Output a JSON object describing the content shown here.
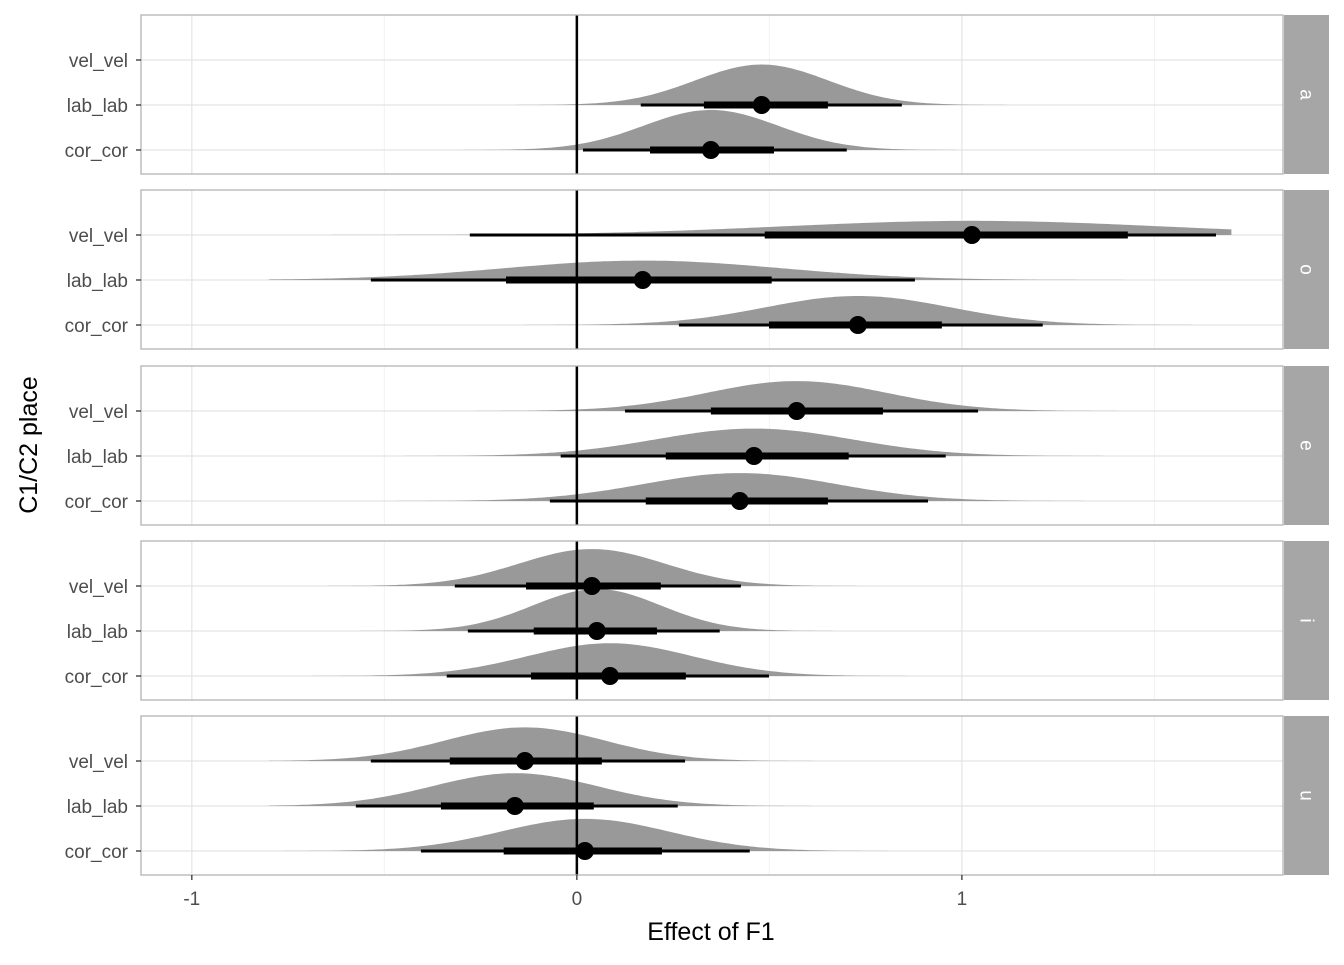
{
  "chart_data": {
    "type": "halfeye",
    "xlabel": "Effect of F1",
    "ylabel": "C1/C2 place",
    "xlim": [
      -1.132,
      1.834
    ],
    "x_ticks": [
      -1,
      0,
      1
    ],
    "x_tick_labels": [
      "-1",
      "0",
      "1"
    ],
    "x_minor_ticks": [
      -0.5,
      0.5,
      1.5
    ],
    "reference_line": 0,
    "categories": [
      "vel_vel",
      "lab_lab",
      "cor_cor"
    ],
    "grid": true,
    "colors": {
      "density": "#999999",
      "interval": "#000000",
      "strip": "#a6a6a6",
      "strip_text": "#ffffff"
    },
    "facets": [
      {
        "label": "a",
        "rows": [
          {
            "category": "lab_lab",
            "point": 0.48,
            "interval_66": [
              0.33,
              0.652
            ],
            "interval_95": [
              0.166,
              0.844
            ]
          },
          {
            "category": "cor_cor",
            "point": 0.348,
            "interval_66": [
              0.19,
              0.512
            ],
            "interval_95": [
              0.016,
              0.701
            ]
          }
        ]
      },
      {
        "label": "o",
        "rows": [
          {
            "category": "vel_vel",
            "point": 1.026,
            "interval_66": [
              0.488,
              1.431
            ],
            "interval_95": [
              -0.278,
              1.66
            ]
          },
          {
            "category": "lab_lab",
            "point": 0.171,
            "interval_66": [
              -0.184,
              0.506
            ],
            "interval_95": [
              -0.535,
              0.878
            ]
          },
          {
            "category": "cor_cor",
            "point": 0.73,
            "interval_66": [
              0.499,
              0.948
            ],
            "interval_95": [
              0.265,
              1.21
            ]
          }
        ]
      },
      {
        "label": "e",
        "rows": [
          {
            "category": "vel_vel",
            "point": 0.571,
            "interval_66": [
              0.348,
              0.795
            ],
            "interval_95": [
              0.125,
              1.042
            ]
          },
          {
            "category": "lab_lab",
            "point": 0.46,
            "interval_66": [
              0.231,
              0.706
            ],
            "interval_95": [
              -0.042,
              0.958
            ]
          },
          {
            "category": "cor_cor",
            "point": 0.423,
            "interval_66": [
              0.179,
              0.652
            ],
            "interval_95": [
              -0.07,
              0.912
            ]
          }
        ]
      },
      {
        "label": "i",
        "rows": [
          {
            "category": "vel_vel",
            "point": 0.039,
            "interval_66": [
              -0.132,
              0.218
            ],
            "interval_95": [
              -0.317,
              0.426
            ]
          },
          {
            "category": "lab_lab",
            "point": 0.052,
            "interval_66": [
              -0.112,
              0.208
            ],
            "interval_95": [
              -0.283,
              0.371
            ]
          },
          {
            "category": "cor_cor",
            "point": 0.086,
            "interval_66": [
              -0.119,
              0.283
            ],
            "interval_95": [
              -0.338,
              0.499
            ]
          }
        ]
      },
      {
        "label": "u",
        "rows": [
          {
            "category": "vel_vel",
            "point": -0.135,
            "interval_66": [
              -0.33,
              0.065
            ],
            "interval_95": [
              -0.535,
              0.281
            ]
          },
          {
            "category": "lab_lab",
            "point": -0.161,
            "interval_66": [
              -0.353,
              0.044
            ],
            "interval_95": [
              -0.574,
              0.262
            ]
          },
          {
            "category": "cor_cor",
            "point": 0.021,
            "interval_66": [
              -0.19,
              0.221
            ],
            "interval_95": [
              -0.405,
              0.449
            ]
          }
        ]
      }
    ]
  }
}
